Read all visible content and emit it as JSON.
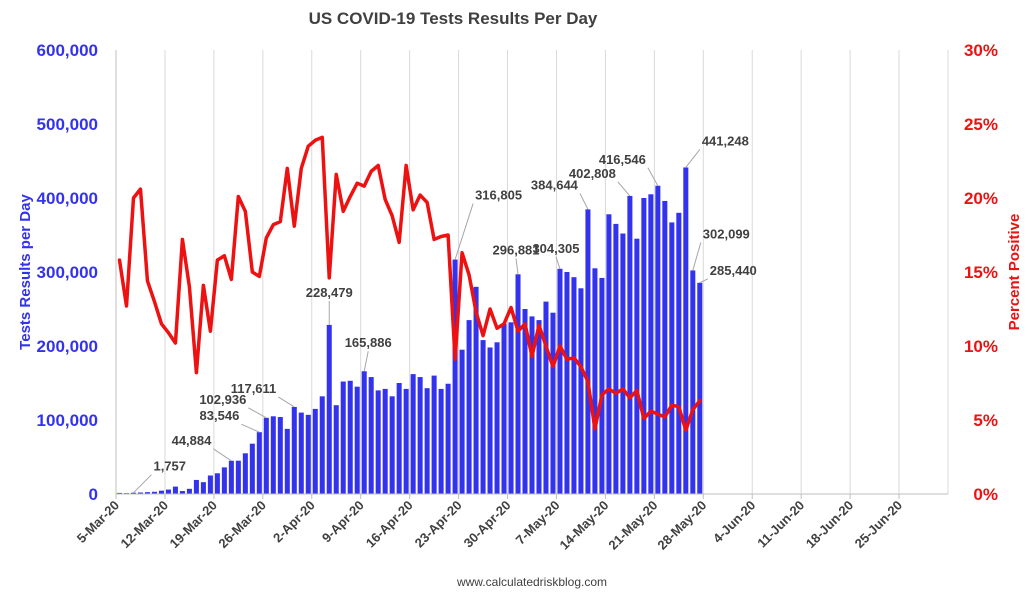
{
  "colors": {
    "bars": "#3333ee",
    "line": "#ee1111",
    "left_axis": "#3333ee",
    "right_axis": "#ee1111",
    "text": "#404040",
    "grid": "#d9d9d9"
  },
  "chart_data": {
    "type": "bar",
    "title": "US COVID-19 Tests Results Per Day",
    "ylabel_left": "Tests Results per Day",
    "ylabel_right": "Percent Positive",
    "footer": "www.calculatedriskblog.com",
    "ylim_left": [
      0,
      600000
    ],
    "ylim_right": [
      0,
      30
    ],
    "left_ticks": [
      "0",
      "100,000",
      "200,000",
      "300,000",
      "400,000",
      "500,000",
      "600,000"
    ],
    "right_ticks": [
      "0%",
      "5%",
      "10%",
      "15%",
      "20%",
      "25%",
      "30%"
    ],
    "x_ticks": [
      "5-Mar-20",
      "12-Mar-20",
      "19-Mar-20",
      "26-Mar-20",
      "2-Apr-20",
      "9-Apr-20",
      "16-Apr-20",
      "23-Apr-20",
      "30-Apr-20",
      "7-May-20",
      "14-May-20",
      "21-May-20",
      "28-May-20",
      "4-Jun-20",
      "11-Jun-20",
      "18-Jun-20",
      "25-Jun-20"
    ],
    "x_start": "2020-03-05",
    "x_end": "2020-07-02",
    "grid": true,
    "series": [
      {
        "name": "Tests Results per Day",
        "type": "bar",
        "axis": "left",
        "values": [
          1500,
          1200,
          1757,
          2000,
          2500,
          3000,
          4500,
          6000,
          10000,
          4000,
          7000,
          19000,
          16000,
          25000,
          28000,
          36000,
          44884,
          45000,
          55000,
          68000,
          83546,
          102936,
          105000,
          104000,
          88000,
          117611,
          110000,
          107000,
          115000,
          132000,
          228479,
          120000,
          152000,
          153000,
          145000,
          165886,
          158000,
          140000,
          142000,
          132000,
          150000,
          142000,
          162000,
          158000,
          143000,
          160000,
          142000,
          149000,
          316805,
          195000,
          235000,
          280000,
          208000,
          198000,
          205000,
          230000,
          232000,
          296881,
          250000,
          240000,
          235000,
          260000,
          245000,
          304305,
          300000,
          293000,
          278000,
          384644,
          305000,
          292000,
          378000,
          365000,
          352000,
          402808,
          345000,
          400000,
          405000,
          416546,
          396000,
          367000,
          380000,
          441248,
          302099,
          285440
        ]
      },
      {
        "name": "Percent Positive",
        "type": "line",
        "axis": "right",
        "values": [
          15.8,
          12.7,
          20.0,
          20.6,
          14.4,
          13.0,
          11.5,
          10.9,
          10.2,
          17.2,
          14.0,
          8.2,
          14.1,
          11.0,
          15.8,
          16.1,
          14.5,
          20.1,
          19.1,
          15.0,
          14.7,
          17.3,
          18.2,
          18.4,
          22.0,
          18.1,
          22.0,
          23.5,
          23.9,
          24.1,
          14.6,
          21.6,
          19.1,
          20.1,
          21.0,
          20.8,
          21.8,
          22.2,
          19.9,
          18.8,
          17.0,
          22.2,
          19.2,
          20.2,
          19.7,
          17.2,
          17.4,
          17.5,
          9.1,
          16.3,
          14.8,
          12.3,
          10.7,
          12.5,
          11.2,
          11.5,
          12.6,
          11.0,
          11.5,
          9.3,
          11.4,
          10.0,
          8.6,
          10.0,
          9.1,
          9.2,
          8.6,
          7.6,
          4.4,
          6.7,
          7.1,
          6.8,
          7.1,
          6.5,
          7.0,
          5.1,
          5.6,
          5.4,
          5.2,
          6.0,
          5.9,
          4.3,
          5.7,
          6.3
        ]
      }
    ],
    "bar_data_labels": [
      {
        "day": 2,
        "text": "1,757"
      },
      {
        "day": 16,
        "text": "44,884"
      },
      {
        "day": 20,
        "text": "83,546"
      },
      {
        "day": 21,
        "text": "102,936"
      },
      {
        "day": 25,
        "text": "117,611"
      },
      {
        "day": 30,
        "text": "228,479"
      },
      {
        "day": 35,
        "text": "165,886"
      },
      {
        "day": 48,
        "text": "316,805"
      },
      {
        "day": 57,
        "text": "296,881"
      },
      {
        "day": 63,
        "text": "304,305"
      },
      {
        "day": 67,
        "text": "384,644"
      },
      {
        "day": 73,
        "text": "402,808"
      },
      {
        "day": 77,
        "text": "416,546"
      },
      {
        "day": 81,
        "text": "441,248"
      },
      {
        "day": 82,
        "text": "302,099"
      },
      {
        "day": 83,
        "text": "285,440"
      }
    ]
  }
}
